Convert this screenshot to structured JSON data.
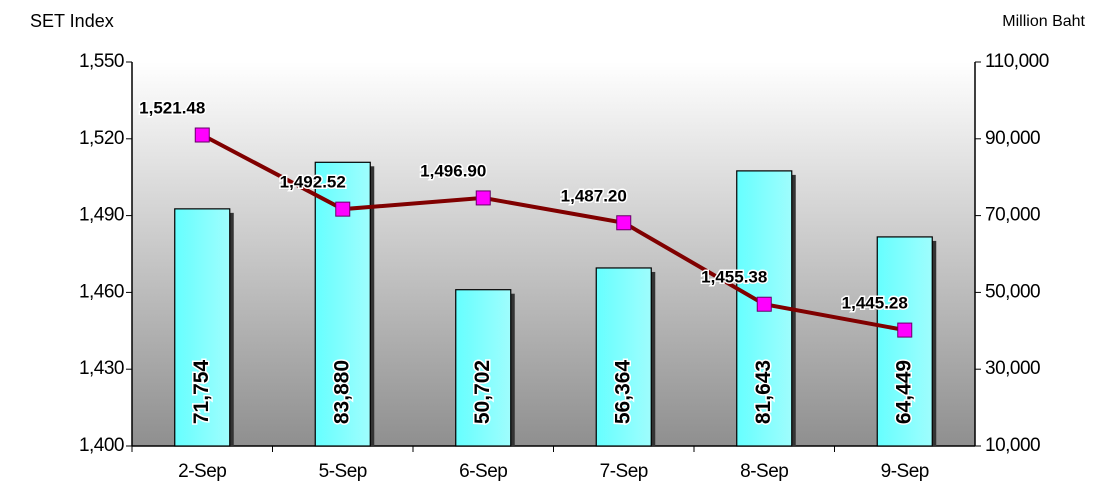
{
  "chart_data": {
    "type": "bar-line",
    "ylabel": "SET Index",
    "y2label": "Million Baht",
    "categories": [
      "2-Sep",
      "5-Sep",
      "6-Sep",
      "7-Sep",
      "8-Sep",
      "9-Sep"
    ],
    "series": [
      {
        "type": "bar",
        "axis": "y2",
        "color": "#66ffff",
        "values": [
          71754,
          83880,
          50702,
          56364,
          81643,
          64449
        ],
        "value_labels": [
          "71,754",
          "83,880",
          "50,702",
          "56,364",
          "81,643",
          "64,449"
        ]
      },
      {
        "type": "line",
        "axis": "y",
        "color": "#800000",
        "marker_color": "#ff00ff",
        "values": [
          1521.48,
          1492.52,
          1496.9,
          1487.2,
          1455.38,
          1445.28
        ],
        "value_labels": [
          "1,521.48",
          "1,492.52",
          "1,496.90",
          "1,487.20",
          "1,455.38",
          "1,445.28"
        ]
      }
    ],
    "ylim": [
      1400,
      1550
    ],
    "yticks": [
      {
        "value": 1400,
        "label": "1,400"
      },
      {
        "value": 1430,
        "label": "1,430"
      },
      {
        "value": 1460,
        "label": "1,460"
      },
      {
        "value": 1490,
        "label": "1,490"
      },
      {
        "value": 1520,
        "label": "1,520"
      },
      {
        "value": 1550,
        "label": "1,550"
      }
    ],
    "y2lim": [
      10000,
      110000
    ],
    "y2ticks": [
      {
        "value": 10000,
        "label": "10,000"
      },
      {
        "value": 30000,
        "label": "30,000"
      },
      {
        "value": 50000,
        "label": "50,000"
      },
      {
        "value": 70000,
        "label": "70,000"
      },
      {
        "value": 90000,
        "label": "90,000"
      },
      {
        "value": 110000,
        "label": "110,000"
      }
    ]
  }
}
